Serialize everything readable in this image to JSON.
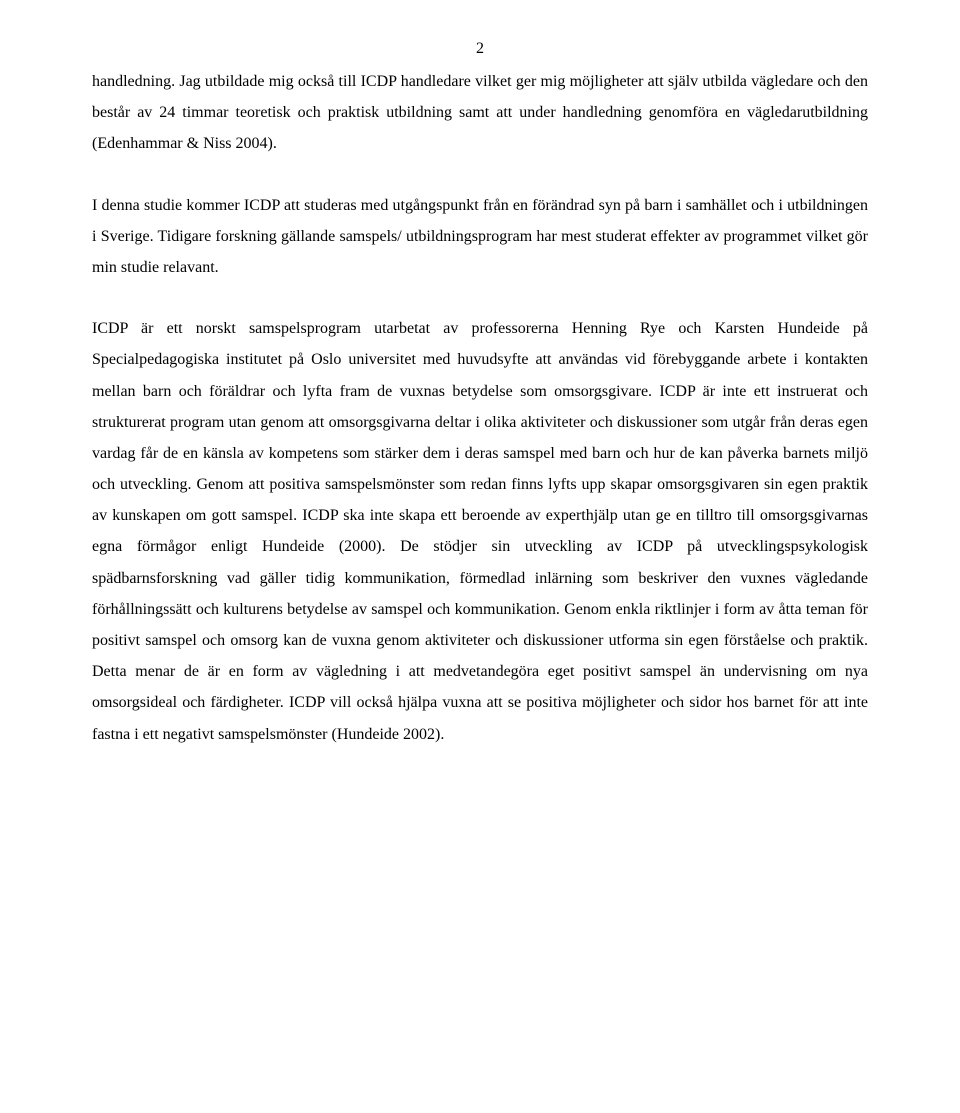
{
  "page": {
    "number": "2",
    "background_color": "#ffffff",
    "text_color": "#000000",
    "font_family": "Times New Roman",
    "font_size_pt": 12,
    "line_height": 1.95,
    "text_align": "justify"
  },
  "paragraphs": {
    "p1": "handledning. Jag utbildade mig också till ICDP handledare vilket ger mig möjligheter att själv utbilda vägledare och den består av 24 timmar teoretisk och praktisk utbildning samt att under handledning genomföra en vägledarutbildning (Edenhammar & Niss 2004).",
    "p2": "I denna studie kommer ICDP att studeras med utgångspunkt från en förändrad syn på barn i samhället och i utbildningen i Sverige. Tidigare forskning gällande samspels/ utbildningsprogram har mest studerat effekter av programmet vilket gör min studie relavant.",
    "p3": "ICDP är ett norskt samspelsprogram utarbetat av professorerna Henning Rye och Karsten Hundeide på Specialpedagogiska institutet på Oslo universitet med huvudsyfte att användas vid förebyggande arbete i kontakten mellan barn och föräldrar och lyfta fram de vuxnas betydelse som omsorgsgivare. ICDP är inte ett instruerat och strukturerat program utan genom att omsorgsgivarna deltar i olika aktiviteter och diskussioner som utgår från deras egen vardag får de en känsla av kompetens som stärker dem i deras samspel med barn och hur de kan påverka barnets miljö och utveckling. Genom att positiva samspelsmönster som redan finns lyfts upp skapar omsorgsgivaren sin egen praktik av kunskapen om gott samspel. ICDP ska inte skapa ett beroende av experthjälp utan ge en tilltro till omsorgsgivarnas egna förmågor enligt Hundeide (2000). De stödjer sin utveckling av ICDP på utvecklingspsykologisk spädbarnsforskning vad gäller tidig kommunikation, förmedlad inlärning som beskriver den vuxnes vägledande förhållningssätt och kulturens betydelse av samspel och kommunikation. Genom enkla riktlinjer i form av åtta teman för positivt samspel och omsorg kan de vuxna genom aktiviteter och diskussioner utforma sin egen förståelse och praktik. Detta menar de är en form av vägledning i att medvetandegöra eget positivt samspel än undervisning om nya omsorgsideal och färdigheter. ICDP vill också hjälpa vuxna att se positiva möjligheter och sidor hos barnet för att inte fastna i ett negativt samspelsmönster (Hundeide 2002)."
  }
}
